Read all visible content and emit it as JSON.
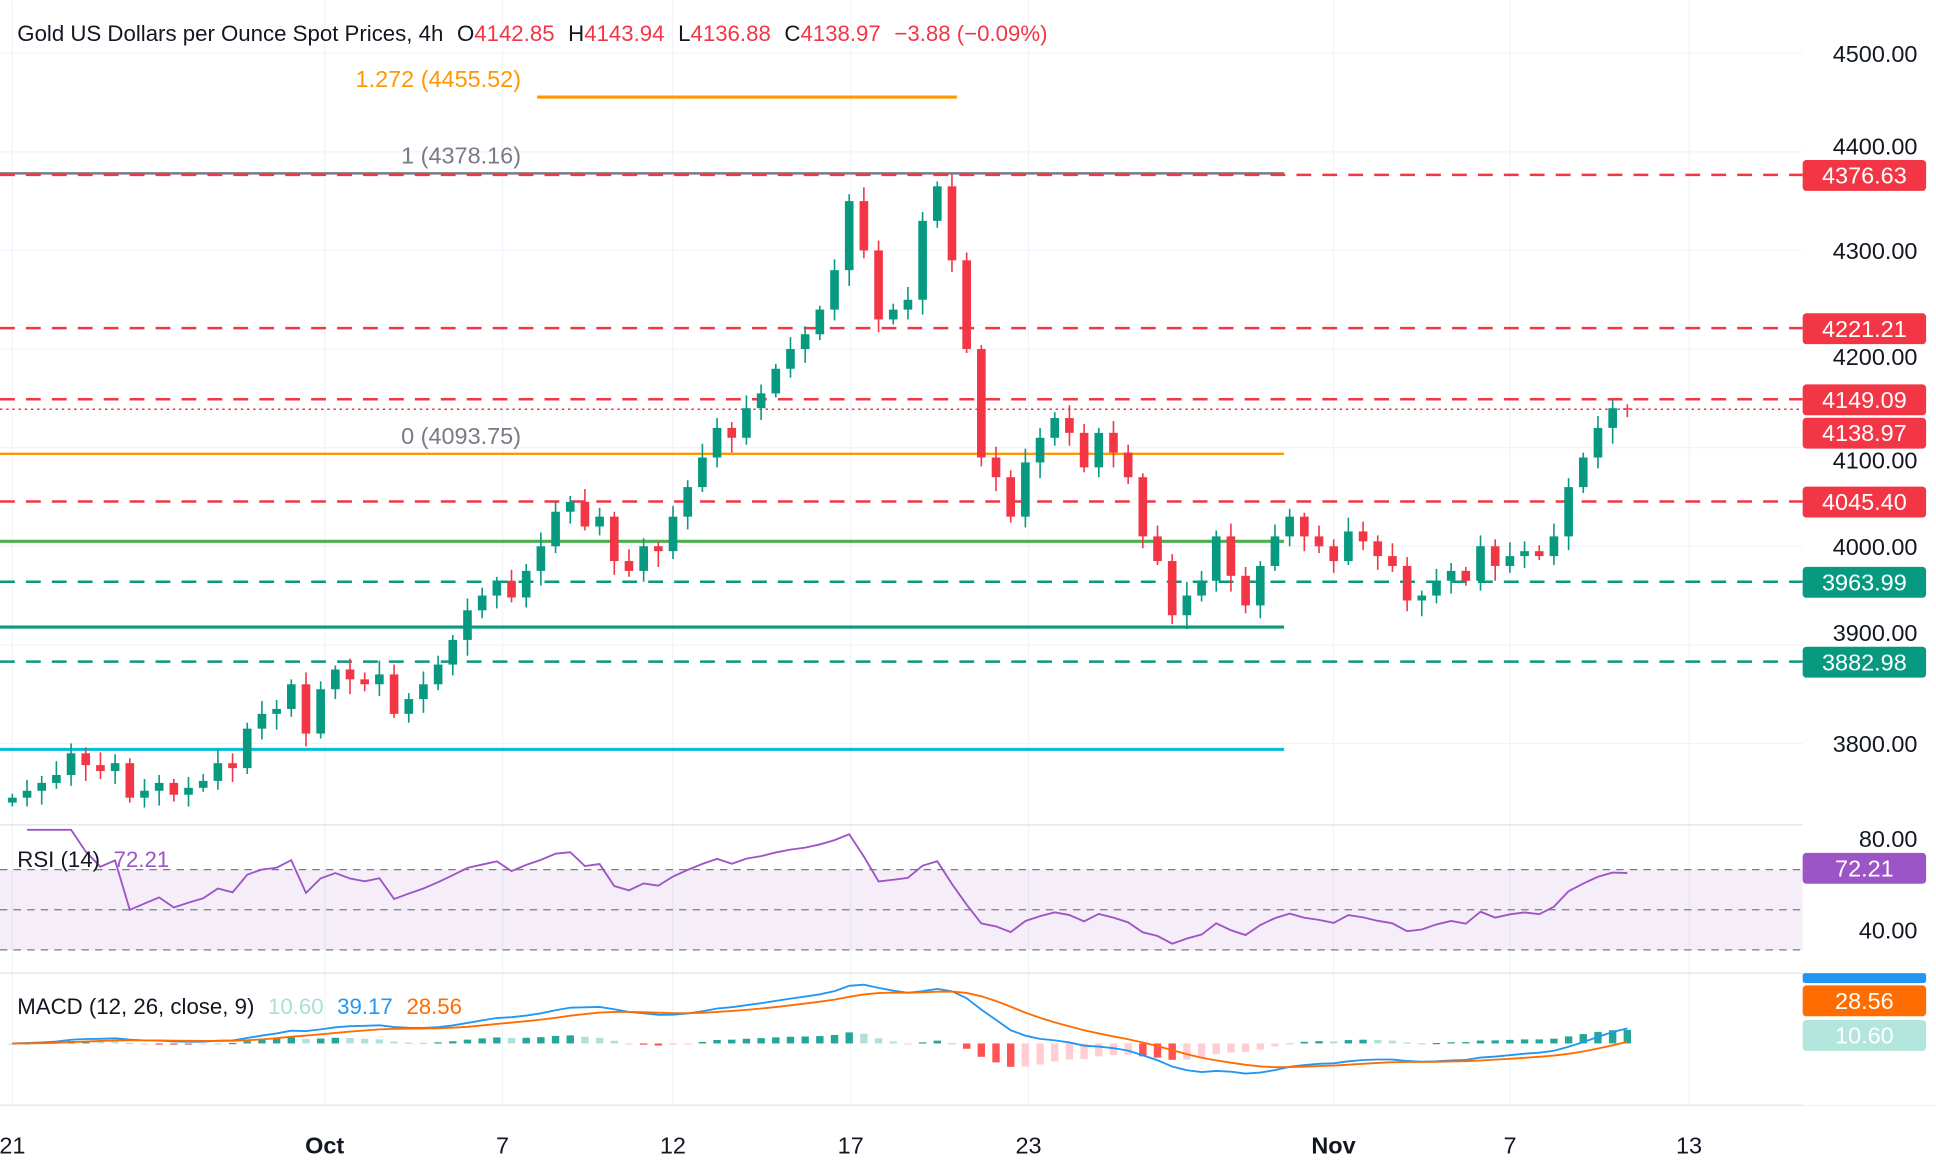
{
  "legend": {
    "symbol": "Gold US Dollars per Ounce Spot Prices, 4h",
    "o_label": "O",
    "o": "4142.85",
    "h_label": "H",
    "h": "4143.94",
    "l_label": "L",
    "l": "4136.88",
    "c_label": "C",
    "c": "4138.97",
    "change": "−3.88 (−0.09%)"
  },
  "colors": {
    "up": "#089981",
    "down": "#f23645",
    "rsi": "#9c55c6",
    "macd": "#2196f3",
    "signal": "#ff6d00",
    "fib": "#ff9800",
    "fib_one": "#787b86",
    "support_solid": "#4caf50",
    "support_dark": "#089981",
    "cyan": "#00bcd4"
  },
  "chart_data": [
    {
      "type": "candlestick",
      "title": "Gold US Dollars per Ounce Spot Prices, 4h",
      "ylim": [
        3720,
        4530
      ],
      "y_ticks": [
        "4500.00",
        "4400.00",
        "4300.00",
        "4200.00",
        "4100.00",
        "4000.00",
        "3900.00",
        "3800.00"
      ],
      "x_ticks": [
        {
          "label": "21",
          "bold": false
        },
        {
          "label": "Oct",
          "bold": true
        },
        {
          "label": "7",
          "bold": false
        },
        {
          "label": "12",
          "bold": false
        },
        {
          "label": "17",
          "bold": false
        },
        {
          "label": "23",
          "bold": false
        },
        {
          "label": "Nov",
          "bold": true
        },
        {
          "label": "7",
          "bold": false
        },
        {
          "label": "13",
          "bold": false
        }
      ],
      "closes": [
        3745,
        3752,
        3760,
        3768,
        3790,
        3778,
        3772,
        3780,
        3745,
        3752,
        3760,
        3748,
        3755,
        3762,
        3780,
        3775,
        3815,
        3830,
        3835,
        3860,
        3810,
        3855,
        3875,
        3865,
        3860,
        3870,
        3830,
        3845,
        3860,
        3880,
        3905,
        3935,
        3950,
        3965,
        3948,
        3975,
        4000,
        4035,
        4045,
        4020,
        4030,
        3985,
        3975,
        4000,
        3995,
        4030,
        4060,
        4090,
        4120,
        4110,
        4140,
        4155,
        4180,
        4200,
        4215,
        4240,
        4280,
        4350,
        4300,
        4230,
        4240,
        4250,
        4330,
        4365,
        4290,
        4200,
        4090,
        4070,
        4030,
        4085,
        4110,
        4130,
        4115,
        4080,
        4115,
        4095,
        4070,
        4010,
        3985,
        3930,
        3950,
        3965,
        4010,
        3970,
        3940,
        3980,
        4010,
        4030,
        4010,
        4000,
        3985,
        4015,
        4005,
        3990,
        3980,
        3945,
        3950,
        3965,
        3975,
        3965,
        4000,
        3980,
        3990,
        3995,
        3990,
        4010,
        4060,
        4090,
        4120,
        4140,
        4138.97
      ],
      "fib_levels": [
        {
          "label": "1.272 (4455.52)",
          "value": 4455.52
        },
        {
          "label": "1 (4378.16)",
          "value": 4378.16
        },
        {
          "label": "0 (4093.75)",
          "value": 4093.75
        }
      ],
      "solid_lines": [
        4005,
        3918,
        3794
      ],
      "resistance": [
        {
          "label": "4376.63",
          "value": 4376.63
        },
        {
          "label": "4221.21",
          "value": 4221.21
        },
        {
          "label": "4149.09",
          "value": 4149.09
        },
        {
          "label": "4045.40",
          "value": 4045.4
        }
      ],
      "support": [
        {
          "label": "3963.99",
          "value": 3963.99
        },
        {
          "label": "3882.98",
          "value": 3882.98
        }
      ],
      "last_price": {
        "label": "4138.97",
        "value": 4138.97
      }
    },
    {
      "type": "line",
      "name": "RSI (14)",
      "value": "72.21",
      "y_ticks": [
        "80.00",
        "40.00"
      ],
      "bands": [
        70,
        50,
        30
      ]
    },
    {
      "type": "line",
      "name": "MACD (12, 26, close, 9)",
      "histogram": "10.60",
      "macd": "39.17",
      "signal": "28.56"
    }
  ]
}
